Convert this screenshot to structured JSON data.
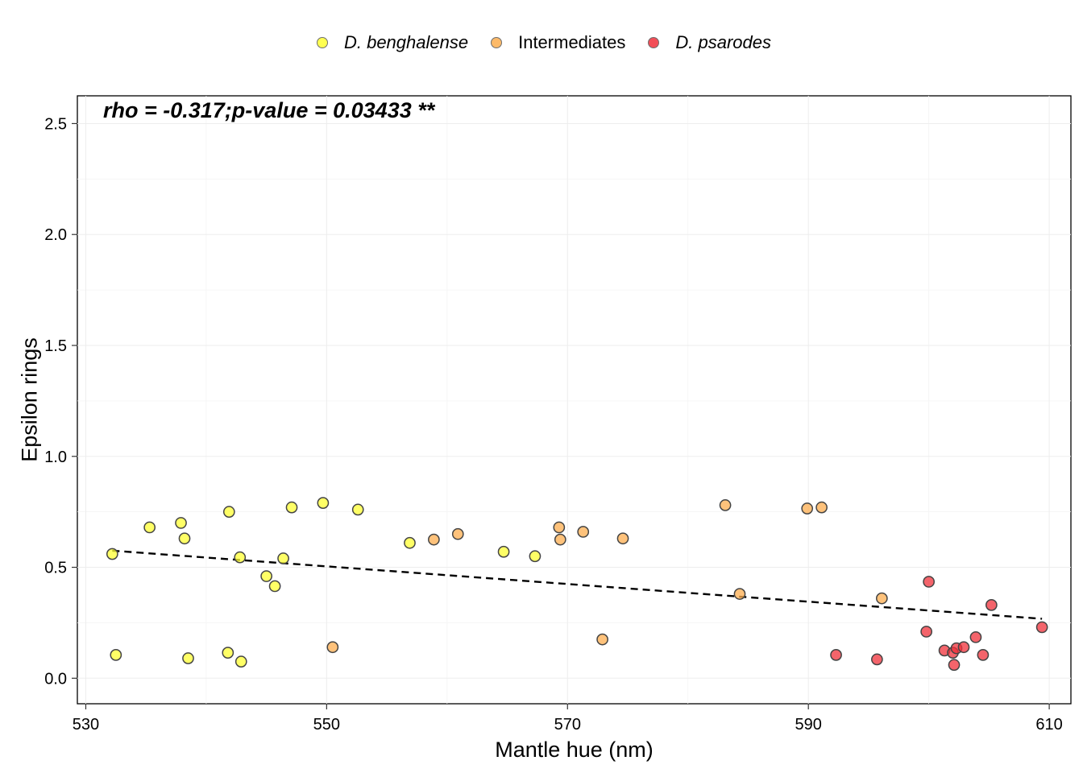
{
  "chart_data": {
    "type": "scatter",
    "xlabel": "Mantle hue (nm)",
    "ylabel": "Epsilon rings",
    "xlim": [
      529.3,
      611.8
    ],
    "ylim": [
      -0.115,
      2.625
    ],
    "xticks": [
      530,
      550,
      570,
      590,
      610
    ],
    "yticks": [
      0.0,
      0.5,
      1.0,
      1.5,
      2.0,
      2.5
    ],
    "xtick_labels": [
      "530",
      "550",
      "570",
      "590",
      "610"
    ],
    "ytick_labels": [
      "0.0",
      "0.5",
      "1.0",
      "1.5",
      "2.0",
      "2.5"
    ],
    "grid": true,
    "legend_position": "top",
    "annotation": "rho = -0.317;p-value = 0.03433 **",
    "trendline": {
      "style": "dashed",
      "x": [
        532.2,
        609.4
      ],
      "y": [
        0.575,
        0.268
      ]
    },
    "series": [
      {
        "name": "D. benghalense",
        "italic": true,
        "color": "#FFFF33",
        "x": [
          532.2,
          532.5,
          535.3,
          537.9,
          538.2,
          538.5,
          541.8,
          541.9,
          542.8,
          542.9,
          545.0,
          545.7,
          546.4,
          547.1,
          549.7,
          552.6,
          556.9,
          564.7,
          567.3
        ],
        "y": [
          0.56,
          0.105,
          0.68,
          0.7,
          0.63,
          0.09,
          0.115,
          0.75,
          0.545,
          0.075,
          0.46,
          0.415,
          0.54,
          0.77,
          0.79,
          0.76,
          0.61,
          0.57,
          0.55
        ]
      },
      {
        "name": "Intermediates",
        "italic": false,
        "color": "#FDAE4F",
        "x": [
          550.5,
          558.9,
          560.9,
          569.3,
          569.4,
          571.3,
          572.9,
          574.6,
          583.1,
          584.3,
          589.9,
          591.1,
          596.1
        ],
        "y": [
          0.14,
          0.625,
          0.65,
          0.68,
          0.625,
          0.66,
          0.175,
          0.63,
          0.78,
          0.38,
          0.765,
          0.77,
          0.36
        ]
      },
      {
        "name": "D. psarodes",
        "italic": true,
        "color": "#F0303A",
        "x": [
          592.3,
          595.7,
          599.8,
          600.0,
          601.3,
          602.0,
          602.1,
          602.3,
          602.9,
          603.9,
          604.5,
          605.2,
          609.4
        ],
        "y": [
          0.105,
          0.085,
          0.21,
          0.435,
          0.125,
          0.115,
          0.06,
          0.135,
          0.14,
          0.185,
          0.105,
          0.33,
          0.23
        ]
      }
    ]
  }
}
